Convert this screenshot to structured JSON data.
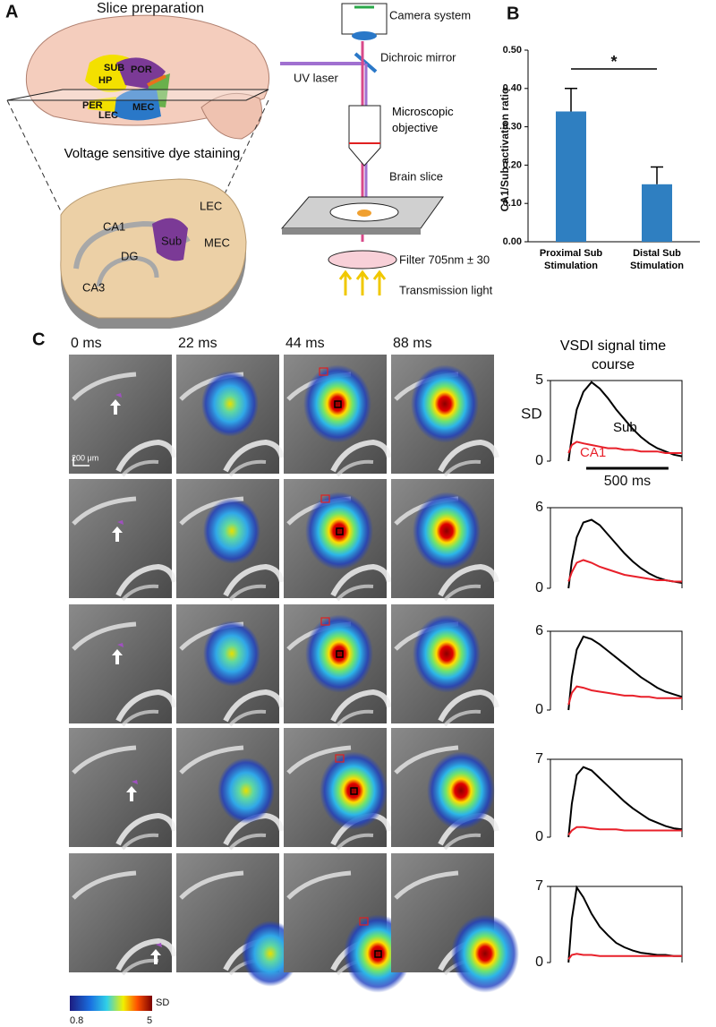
{
  "panel_labels": [
    "A",
    "B",
    "C"
  ],
  "slice_preparation": {
    "title": "Slice preparation",
    "regions": [
      "SUB",
      "POR",
      "HP",
      "PER",
      "LEC",
      "MEC"
    ],
    "staining_title": "Voltage sensitive dye staining",
    "slice_regions": [
      "CA1",
      "Sub",
      "LEC",
      "MEC",
      "DG",
      "CA3"
    ]
  },
  "optics": {
    "labels": [
      "Camera system",
      "Dichroic mirror",
      "UV laser",
      "Microscopic objective",
      "Brain slice",
      "Filter 705nm ± 30",
      "Transmission light"
    ]
  },
  "imaging": {
    "times": [
      "0 ms",
      "22 ms",
      "44 ms",
      "88 ms"
    ],
    "scale_bar": "200 μm",
    "colorbar": {
      "min": 0.8,
      "max": 5,
      "unit": "SD"
    }
  },
  "chart_data": [
    {
      "type": "bar",
      "ylabel": "CA1/Sub activation ratio",
      "categories": [
        "Proximal Sub Stimulation",
        "Distal Sub Stimulation"
      ],
      "values": [
        0.34,
        0.15
      ],
      "errors": [
        0.06,
        0.045
      ],
      "color": "#2f7fc1",
      "significance": "*",
      "ylim": [
        0,
        0.5
      ],
      "yticks": [
        {
          "value": 0,
          "label": "0.00"
        },
        {
          "value": 0.1,
          "label": "0.10"
        },
        {
          "value": 0.2,
          "label": "0.20"
        },
        {
          "value": 0.3,
          "label": "0.30"
        },
        {
          "value": 0.4,
          "label": "0.40"
        },
        {
          "value": 0.5,
          "label": "0.50"
        }
      ]
    },
    {
      "type": "line",
      "title": "VSDI signal time course",
      "ylabel": "SD",
      "scale_bar": {
        "value": 500,
        "label": "500 ms"
      },
      "x": [
        110,
        130,
        160,
        200,
        250,
        300,
        350,
        400,
        450,
        500,
        550,
        600,
        650,
        700,
        750,
        800
      ],
      "xlim": [
        0,
        800
      ],
      "ylim": [
        0,
        5
      ],
      "yticks": [
        0,
        5
      ],
      "series": [
        {
          "name": "Sub",
          "color": "#000000",
          "values": [
            0,
            1.5,
            3.2,
            4.3,
            4.9,
            4.5,
            3.9,
            3.2,
            2.6,
            2.0,
            1.5,
            1.1,
            0.8,
            0.6,
            0.4,
            0.3
          ]
        },
        {
          "name": "CA1",
          "color": "#e8202a",
          "values": [
            0.5,
            1.0,
            1.2,
            1.1,
            1.0,
            0.9,
            0.8,
            0.8,
            0.7,
            0.7,
            0.6,
            0.6,
            0.6,
            0.5,
            0.5,
            0.5
          ]
        }
      ]
    },
    {
      "type": "line",
      "x": [
        110,
        130,
        160,
        200,
        250,
        300,
        350,
        400,
        450,
        500,
        550,
        600,
        650,
        700,
        750,
        800
      ],
      "xlim": [
        0,
        800
      ],
      "ylim": [
        0,
        6
      ],
      "yticks": [
        0,
        6
      ],
      "series": [
        {
          "color": "#000000",
          "values": [
            0,
            2.0,
            3.8,
            4.9,
            5.1,
            4.7,
            4.0,
            3.3,
            2.6,
            2.0,
            1.5,
            1.1,
            0.8,
            0.6,
            0.5,
            0.4
          ]
        },
        {
          "color": "#e8202a",
          "values": [
            0.5,
            1.2,
            1.9,
            2.1,
            1.9,
            1.6,
            1.4,
            1.2,
            1.0,
            0.9,
            0.8,
            0.7,
            0.6,
            0.6,
            0.5,
            0.5
          ]
        }
      ]
    },
    {
      "type": "line",
      "x": [
        110,
        130,
        160,
        200,
        250,
        300,
        350,
        400,
        450,
        500,
        550,
        600,
        650,
        700,
        750,
        800
      ],
      "xlim": [
        0,
        800
      ],
      "ylim": [
        0,
        6
      ],
      "yticks": [
        0,
        6
      ],
      "series": [
        {
          "color": "#000000",
          "values": [
            0,
            2.5,
            4.6,
            5.6,
            5.4,
            5.0,
            4.5,
            4.0,
            3.5,
            3.0,
            2.5,
            2.1,
            1.7,
            1.4,
            1.2,
            1.0
          ]
        },
        {
          "color": "#e8202a",
          "values": [
            0.4,
            1.3,
            1.8,
            1.7,
            1.5,
            1.4,
            1.3,
            1.2,
            1.1,
            1.1,
            1.0,
            1.0,
            0.9,
            0.9,
            0.9,
            0.9
          ]
        }
      ]
    },
    {
      "type": "line",
      "x": [
        110,
        130,
        160,
        200,
        250,
        300,
        350,
        400,
        450,
        500,
        550,
        600,
        650,
        700,
        750,
        800
      ],
      "xlim": [
        0,
        800
      ],
      "ylim": [
        0,
        7
      ],
      "yticks": [
        0,
        7
      ],
      "series": [
        {
          "color": "#000000",
          "values": [
            0,
            3.0,
            5.6,
            6.3,
            6.0,
            5.3,
            4.6,
            3.9,
            3.2,
            2.6,
            2.1,
            1.6,
            1.3,
            1.0,
            0.8,
            0.7
          ]
        },
        {
          "color": "#e8202a",
          "values": [
            0.2,
            0.6,
            0.9,
            0.9,
            0.8,
            0.7,
            0.7,
            0.7,
            0.6,
            0.6,
            0.6,
            0.6,
            0.6,
            0.6,
            0.6,
            0.6
          ]
        }
      ]
    },
    {
      "type": "line",
      "x": [
        110,
        130,
        160,
        200,
        250,
        300,
        350,
        400,
        450,
        500,
        550,
        600,
        650,
        700,
        750,
        800
      ],
      "xlim": [
        0,
        800
      ],
      "ylim": [
        0,
        7
      ],
      "yticks": [
        0,
        7
      ],
      "series": [
        {
          "color": "#000000",
          "values": [
            0,
            4.0,
            6.9,
            6.0,
            4.5,
            3.3,
            2.5,
            1.8,
            1.4,
            1.1,
            0.9,
            0.8,
            0.7,
            0.7,
            0.6,
            0.6
          ]
        },
        {
          "color": "#e8202a",
          "values": [
            0.3,
            0.7,
            0.8,
            0.7,
            0.7,
            0.6,
            0.6,
            0.6,
            0.6,
            0.6,
            0.6,
            0.6,
            0.6,
            0.6,
            0.6,
            0.6
          ]
        }
      ]
    }
  ]
}
